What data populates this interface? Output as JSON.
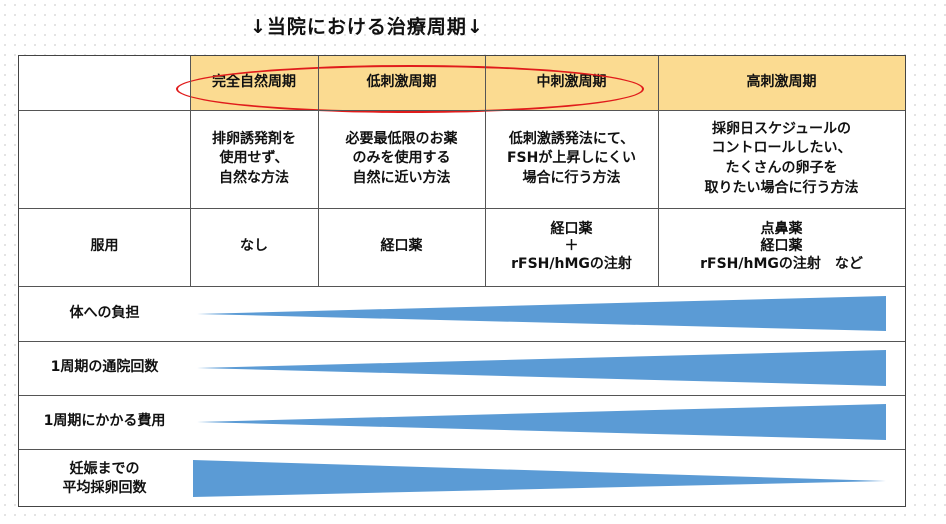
{
  "title": "↓当院における治療周期↓",
  "columns": [
    {
      "header": "完全自然周期",
      "description": "排卵誘発剤を\n使用せず、\n自然な方法",
      "medication": "なし"
    },
    {
      "header": "低刺激周期",
      "description": "必要最低限のお薬\nのみを使用する\n自然に近い方法",
      "medication": "経口薬"
    },
    {
      "header": "中刺激周期",
      "description": "低刺激誘発法にて、\nFSHが上昇しにくい\n場合に行う方法",
      "medication": "経口薬\n＋\nrFSH/hMGの注射"
    },
    {
      "header": "高刺激周期",
      "description": "採卵日スケジュールの\nコントロールしたい、\nたくさんの卵子を\n取りたい場合に行う方法",
      "medication": "点鼻薬\n経口薬\nrFSH/hMGの注射　など"
    }
  ],
  "row_labels": {
    "medication": "服用",
    "burden": "体への負担",
    "visits": "1周期の通院回数",
    "cost": "1周期にかかる費用",
    "retrievals": "妊娠までの\n平均採卵回数"
  },
  "trend_rows": [
    {
      "label_key": "burden",
      "direction": "increasing"
    },
    {
      "label_key": "visits",
      "direction": "increasing"
    },
    {
      "label_key": "cost",
      "direction": "increasing"
    },
    {
      "label_key": "retrievals",
      "direction": "decreasing"
    }
  ],
  "colors": {
    "header_fill": "#fbdb91",
    "wedge_fill": "#5b9bd5",
    "highlight_oval": "#e01b1b"
  }
}
